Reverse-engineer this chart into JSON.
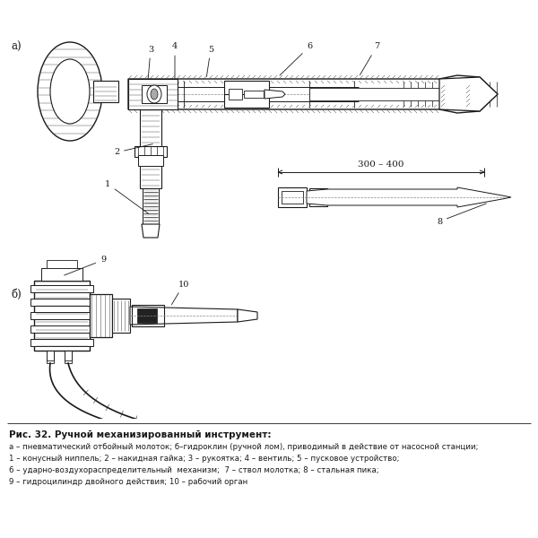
{
  "title": "Рис. 32. Ручной механизированный инструмент:",
  "caption_lines": [
    "а – пневматический отбойный молоток; б–гидроклин (ручной лом), приводимый в действие от насосной станции;",
    "1 – конусный ниппель; 2 – накидная гайка; 3 – рукоятка; 4 – вентиль; 5 – пусковое устройство;",
    "6 – ударно-воздухораспределительный  механизм;  7 – ствол молотка; 8 – стальная пика;",
    "9 – гидроцилиндр двойного действия; 10 – рабочий орган"
  ],
  "bg_color": "#ffffff",
  "line_color": "#1a1a1a",
  "hatch_color": "#555555",
  "label_a": "а)",
  "label_b": "б)",
  "dimension_text": "300 – 400",
  "label_8": "8",
  "label_9": "9",
  "label_10": "10"
}
